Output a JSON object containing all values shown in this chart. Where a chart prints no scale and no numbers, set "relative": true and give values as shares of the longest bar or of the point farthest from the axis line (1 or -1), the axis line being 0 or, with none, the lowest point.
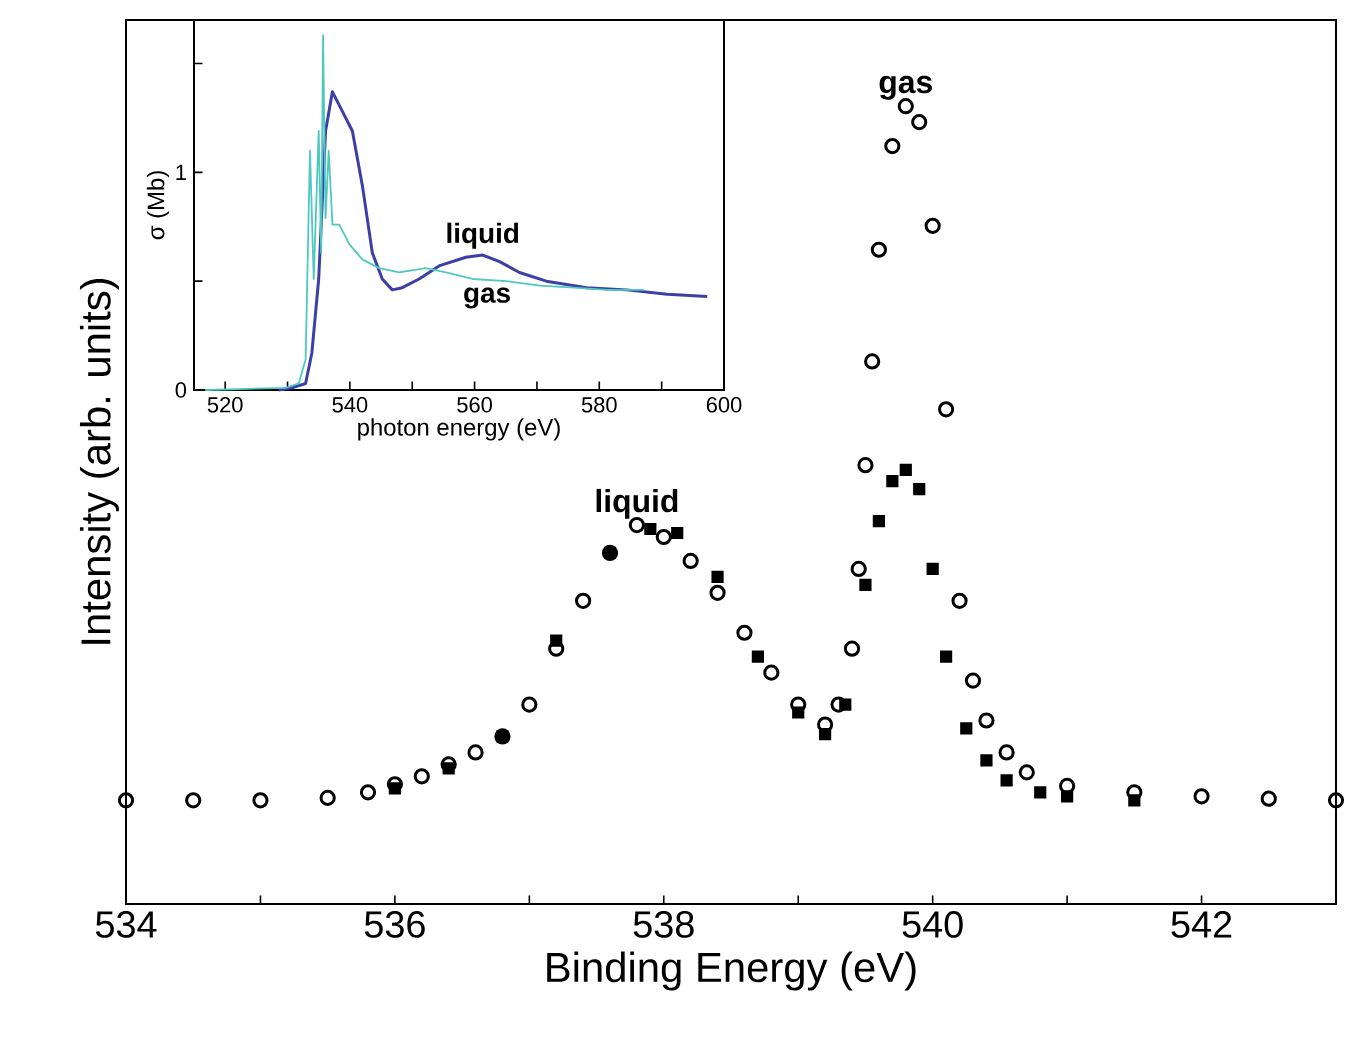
{
  "chart_data": [
    {
      "type": "scatter",
      "relative": true,
      "xlabel": "Binding Energy (eV)",
      "ylabel": "Intensity (arb. units)",
      "tick_labels": "x",
      "xlim": [
        534,
        543
      ],
      "xticks": [
        534,
        {
          "value": 535,
          "label": null
        },
        536,
        {
          "value": 537,
          "label": null
        },
        538,
        {
          "value": 539,
          "label": null
        },
        540,
        {
          "value": 541,
          "label": null
        },
        542
      ],
      "series": [
        {
          "color": "#000000",
          "marker": "circle",
          "x": [
            534.0,
            534.5,
            535.0,
            535.5,
            535.8,
            536.0,
            536.2,
            536.4,
            536.6,
            536.8,
            537.0,
            537.2,
            537.4,
            537.6,
            537.8,
            538.0,
            538.2,
            538.4,
            538.6,
            538.8,
            539.0,
            539.2,
            539.3,
            539.4,
            539.45,
            539.5,
            539.55,
            539.6,
            539.7,
            539.8,
            539.9,
            540.0,
            540.1,
            540.2,
            540.3,
            540.4,
            540.55,
            540.7,
            541.0,
            541.5,
            542.0,
            542.5,
            543.0
          ],
          "values": [
            0.13,
            0.13,
            0.13,
            0.133,
            0.14,
            0.15,
            0.16,
            0.175,
            0.19,
            0.21,
            0.25,
            0.32,
            0.38,
            0.44,
            0.475,
            0.46,
            0.43,
            0.39,
            0.34,
            0.29,
            0.25,
            0.225,
            0.25,
            0.32,
            0.42,
            0.55,
            0.68,
            0.82,
            0.95,
            1.0,
            0.98,
            0.85,
            0.62,
            0.38,
            0.28,
            0.23,
            0.19,
            0.165,
            0.148,
            0.14,
            0.135,
            0.132,
            0.13
          ]
        },
        {
          "color": "#000000",
          "marker": "square",
          "x": [
            536.0,
            536.4,
            536.8,
            537.2,
            537.6,
            537.9,
            538.1,
            538.4,
            538.7,
            539.0,
            539.2,
            539.35,
            539.5,
            539.6,
            539.7,
            539.8,
            539.9,
            540.0,
            540.1,
            540.25,
            540.4,
            540.55,
            540.8,
            541.0,
            541.5
          ],
          "values": [
            0.145,
            0.17,
            0.21,
            0.33,
            0.44,
            0.47,
            0.465,
            0.41,
            0.31,
            0.24,
            0.213,
            0.25,
            0.4,
            0.48,
            0.53,
            0.544,
            0.52,
            0.42,
            0.31,
            0.22,
            0.18,
            0.155,
            0.14,
            0.135,
            0.13
          ]
        }
      ],
      "annotations": [
        {
          "text": "gas",
          "x": 539.8,
          "y": 1.0
        },
        {
          "text": "liquid",
          "x": 537.8,
          "y": 0.475
        }
      ]
    },
    {
      "type": "line",
      "xlabel": "photon energy (eV)",
      "ylabel": "σ (Mb)",
      "xlim": [
        515,
        600
      ],
      "ylim": [
        0,
        1.7
      ],
      "xticks": [
        520,
        {
          "value": 530,
          "label": null
        },
        540,
        {
          "value": 550,
          "label": null
        },
        560,
        {
          "value": 570,
          "label": null
        },
        580,
        {
          "value": 590,
          "label": null
        },
        600
      ],
      "yticks": [
        0,
        {
          "value": 0.5,
          "label": null
        },
        1,
        {
          "value": 1.5,
          "label": null
        }
      ],
      "series": [
        {
          "color": "#3b3fa6",
          "x": [
            528.6,
            530.7,
            532.9,
            533.9,
            535.0,
            536.1,
            537.2,
            538.8,
            540.4,
            542.0,
            543.6,
            545.2,
            546.8,
            548.4,
            551.1,
            554.3,
            558.6,
            561.3,
            564.0,
            567.2,
            571.5,
            578.0,
            584.4,
            590.9,
            597.3
          ],
          "values": [
            0.0,
            0.01,
            0.03,
            0.17,
            0.51,
            1.19,
            1.37,
            1.28,
            1.19,
            0.94,
            0.63,
            0.51,
            0.46,
            0.47,
            0.51,
            0.57,
            0.61,
            0.62,
            0.59,
            0.54,
            0.5,
            0.47,
            0.46,
            0.44,
            0.43
          ]
        },
        {
          "color": "#4fc9c0",
          "x": [
            516.8,
            529.7,
            531.8,
            532.9,
            533.6,
            534.2,
            535.0,
            535.4,
            535.7,
            536.1,
            536.6,
            537.2,
            538.3,
            539.9,
            542.0,
            544.7,
            547.9,
            552.2,
            555.4,
            559.7,
            565.1,
            570.5,
            575.9,
            581.2,
            587.1
          ],
          "values": [
            0.0,
            0.01,
            0.03,
            0.14,
            1.1,
            0.51,
            1.19,
            0.63,
            1.63,
            0.79,
            1.1,
            0.76,
            0.76,
            0.67,
            0.6,
            0.56,
            0.54,
            0.56,
            0.54,
            0.51,
            0.5,
            0.48,
            0.47,
            0.46,
            0.46
          ]
        }
      ],
      "annotations": [
        {
          "text": "liquid",
          "x": 561.3,
          "y": 0.62
        },
        {
          "text": "gas",
          "x": 562.0,
          "y": 0.5
        }
      ]
    }
  ]
}
